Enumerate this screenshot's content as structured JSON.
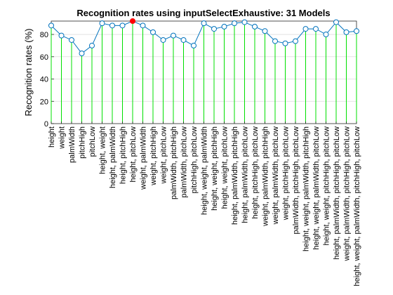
{
  "chart_data": {
    "type": "stem",
    "title": "Recognition rates using inputSelectExhaustive: 31 Models",
    "ylabel": "Recognition rates (%)",
    "xlabel": "",
    "ylim": [
      0,
      92
    ],
    "yticks": [
      0,
      20,
      40,
      60,
      80
    ],
    "grid": true,
    "categories": [
      "height",
      "weight",
      "palmWidth",
      "pitchHigh",
      "pitchLow",
      "height, weight",
      "height, palmWidth",
      "height, pitchHigh",
      "height, pitchLow",
      "weight, palmWidth",
      "weight, pitchHigh",
      "weight, pitchLow",
      "palmWidth, pitchHigh",
      "palmWidth, pitchLow",
      "pitchHigh, pitchLow",
      "height, weight, palmWidth",
      "height, weight, pitchHigh",
      "height, weight, pitchLow",
      "height, palmWidth, pitchHigh",
      "height, palmWidth, pitchLow",
      "height, pitchHigh, pitchLow",
      "weight, palmWidth, pitchHigh",
      "weight, palmWidth, pitchLow",
      "weight, pitchHigh, pitchLow",
      "palmWidth, pitchHigh, pitchLow",
      "height, weight, palmWidth, pitchHigh",
      "height, weight, palmWidth, pitchLow",
      "height, weight, pitchHigh, pitchLow",
      "height, palmWidth, pitchHigh, pitchLow",
      "weight, palmWidth, pitchHigh, pitchLow",
      "height, weight, palmWidth, pitchHigh, pitchLow"
    ],
    "values": [
      88,
      79,
      75,
      63,
      70,
      90,
      88,
      88,
      92,
      88,
      82,
      75,
      79,
      75,
      70,
      90,
      85,
      87,
      90,
      91,
      87,
      83,
      74,
      72,
      74,
      85,
      85,
      80,
      91,
      82,
      83
    ],
    "highlight_index": 8,
    "colors": {
      "stem": "#00e000",
      "line": "#0072bd",
      "marker_edge": "#0072bd",
      "highlight": "#ff0000",
      "axis": "#262626",
      "grid": "#dcdcdc"
    }
  }
}
